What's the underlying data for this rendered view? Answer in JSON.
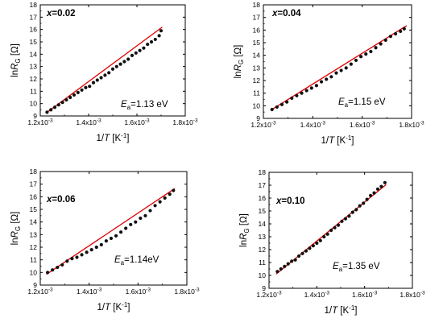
{
  "chart_data": [
    {
      "type": "scatter",
      "composition_var": "x",
      "composition_value": "=0.02",
      "ea_symbol": "E",
      "ea_sub": "a",
      "ea_value": "=1.13 eV",
      "xlabel_main": "1/T",
      "xlabel_unit": "[K",
      "xlabel_exp": "-1",
      "xlabel_close": "]",
      "ylabel_prefix": "ln",
      "ylabel_var": "R",
      "ylabel_sub": "G",
      "ylabel_unit": "[Ω]",
      "xlim": [
        0.0012,
        0.0018
      ],
      "ylim": [
        9,
        18
      ],
      "xticks": [
        "1.2x10",
        "1.4x10",
        "1.6x10",
        "1.8x10"
      ],
      "xtick_exp": "-3",
      "yticks": [
        "9",
        "10",
        "11",
        "12",
        "13",
        "14",
        "15",
        "16",
        "17",
        "18"
      ],
      "x": [
        0.001228,
        0.001244,
        0.00126,
        0.001276,
        0.001292,
        0.001308,
        0.001324,
        0.00134,
        0.001356,
        0.001372,
        0.001388,
        0.001404,
        0.00142,
        0.001436,
        0.001452,
        0.001468,
        0.001484,
        0.0015,
        0.001516,
        0.001532,
        0.001548,
        0.001564,
        0.00158,
        0.001596,
        0.001612,
        0.001628,
        0.001644,
        0.00166,
        0.001676,
        0.001692,
        0.0017
      ],
      "y": [
        9.3,
        9.5,
        9.7,
        9.9,
        10.1,
        10.3,
        10.5,
        10.7,
        10.9,
        11.1,
        11.3,
        11.4,
        11.7,
        11.9,
        12.1,
        12.3,
        12.5,
        12.8,
        13.0,
        13.2,
        13.4,
        13.6,
        13.9,
        14.1,
        14.3,
        14.5,
        14.8,
        15.0,
        15.2,
        15.5,
        15.9
      ],
      "fit": [
        [
          0.001225,
          9.25
        ],
        [
          0.001705,
          16.2
        ]
      ]
    },
    {
      "type": "scatter",
      "composition_var": "x",
      "composition_value": "=0.04",
      "ea_symbol": "E",
      "ea_sub": "a",
      "ea_value": "=1.15 eV",
      "xlabel_main": "1/T",
      "xlabel_unit": "[K",
      "xlabel_exp": "-1",
      "xlabel_close": "]",
      "ylabel_prefix": "ln",
      "ylabel_var": "R",
      "ylabel_sub": "G",
      "ylabel_unit": "[Ω]",
      "xlim": [
        0.0012,
        0.0018
      ],
      "ylim": [
        9,
        18
      ],
      "xticks": [
        "1.2x10",
        "1.4x10",
        "1.6x10",
        "1.8x10"
      ],
      "xtick_exp": "-3",
      "yticks": [
        "9",
        "10",
        "11",
        "12",
        "13",
        "14",
        "15",
        "16",
        "17",
        "18"
      ],
      "x": [
        0.001235,
        0.001255,
        0.001275,
        0.001295,
        0.001315,
        0.001335,
        0.001355,
        0.001375,
        0.001395,
        0.001415,
        0.001435,
        0.001455,
        0.001475,
        0.001495,
        0.001515,
        0.001535,
        0.001555,
        0.001575,
        0.001595,
        0.001615,
        0.001635,
        0.001655,
        0.001675,
        0.001695,
        0.001715,
        0.001735,
        0.001755,
        0.00177
      ],
      "y": [
        9.7,
        9.9,
        10.1,
        10.3,
        10.6,
        10.8,
        11.0,
        11.2,
        11.4,
        11.6,
        11.9,
        12.1,
        12.3,
        12.6,
        12.8,
        13.0,
        13.3,
        13.6,
        13.9,
        14.1,
        14.3,
        14.6,
        14.9,
        15.2,
        15.5,
        15.7,
        15.9,
        16.1
      ],
      "fit": [
        [
          0.00123,
          9.65
        ],
        [
          0.00178,
          16.35
        ]
      ]
    },
    {
      "type": "scatter",
      "composition_var": "x",
      "composition_value": "=0.06",
      "ea_symbol": "E",
      "ea_sub": "a",
      "ea_value": "=1.14eV",
      "xlabel_main": "1/T",
      "xlabel_unit": "[K",
      "xlabel_exp": "-1",
      "xlabel_close": "]",
      "ylabel_prefix": "ln",
      "ylabel_var": "R",
      "ylabel_sub": "G",
      "ylabel_unit": "[Ω]",
      "xlim": [
        0.0012,
        0.0018
      ],
      "ylim": [
        9,
        18
      ],
      "xticks": [
        "1.2x10",
        "1.4x10",
        "1.6x10",
        "1.8x10"
      ],
      "xtick_exp": "-3",
      "yticks": [
        "9",
        "10",
        "11",
        "12",
        "13",
        "14",
        "15",
        "16",
        "17",
        "18"
      ],
      "x": [
        0.00123,
        0.00125,
        0.00127,
        0.00129,
        0.00131,
        0.00133,
        0.00135,
        0.00137,
        0.00139,
        0.00141,
        0.00143,
        0.00145,
        0.00147,
        0.00149,
        0.00151,
        0.00153,
        0.00155,
        0.00157,
        0.00159,
        0.00161,
        0.00163,
        0.00165,
        0.00167,
        0.00169,
        0.00171,
        0.00173,
        0.001745
      ],
      "y": [
        10.0,
        10.2,
        10.4,
        10.6,
        10.9,
        11.1,
        11.2,
        11.4,
        11.6,
        11.8,
        12.0,
        12.2,
        12.5,
        12.7,
        12.9,
        13.2,
        13.5,
        13.8,
        14.0,
        14.3,
        14.5,
        14.9,
        15.3,
        15.6,
        15.9,
        16.2,
        16.5
      ],
      "fit": [
        [
          0.001225,
          9.85
        ],
        [
          0.00175,
          16.65
        ]
      ]
    },
    {
      "type": "scatter",
      "composition_var": "x",
      "composition_value": "=0.10",
      "ea_symbol": "E",
      "ea_sub": "a",
      "ea_value": "=1.35 eV",
      "xlabel_main": "1/T",
      "xlabel_unit": "[K",
      "xlabel_exp": "-1",
      "xlabel_close": "]",
      "ylabel_prefix": "ln",
      "ylabel_var": "R",
      "ylabel_sub": "G",
      "ylabel_unit": "[Ω]",
      "xlim": [
        0.0012,
        0.0018
      ],
      "ylim": [
        9,
        18
      ],
      "xticks": [
        "1.2x10",
        "1.4x10",
        "1.6x10",
        "1.8x10"
      ],
      "xtick_exp": "-3",
      "yticks": [
        "9",
        "10",
        "11",
        "12",
        "13",
        "14",
        "15",
        "16",
        "17",
        "18"
      ],
      "x": [
        0.001235,
        0.00125,
        0.001265,
        0.00128,
        0.001295,
        0.00131,
        0.001325,
        0.00134,
        0.001355,
        0.00137,
        0.001385,
        0.0014,
        0.001415,
        0.00143,
        0.001445,
        0.00146,
        0.001475,
        0.00149,
        0.001505,
        0.00152,
        0.001535,
        0.00155,
        0.001565,
        0.00158,
        0.001595,
        0.00161,
        0.001625,
        0.00164,
        0.001655,
        0.00167,
        0.001685
      ],
      "y": [
        10.3,
        10.5,
        10.7,
        10.9,
        11.1,
        11.2,
        11.5,
        11.7,
        11.9,
        12.1,
        12.3,
        12.5,
        12.7,
        13.0,
        13.2,
        13.5,
        13.7,
        13.9,
        14.2,
        14.4,
        14.6,
        14.9,
        15.1,
        15.4,
        15.6,
        15.9,
        16.2,
        16.4,
        16.7,
        16.9,
        17.2
      ],
      "fit": [
        [
          0.00123,
          10.1
        ],
        [
          0.00169,
          17.05
        ]
      ]
    }
  ],
  "colors": {
    "fit_line": "#e00000",
    "points": "#111111",
    "axis": "#000000"
  }
}
